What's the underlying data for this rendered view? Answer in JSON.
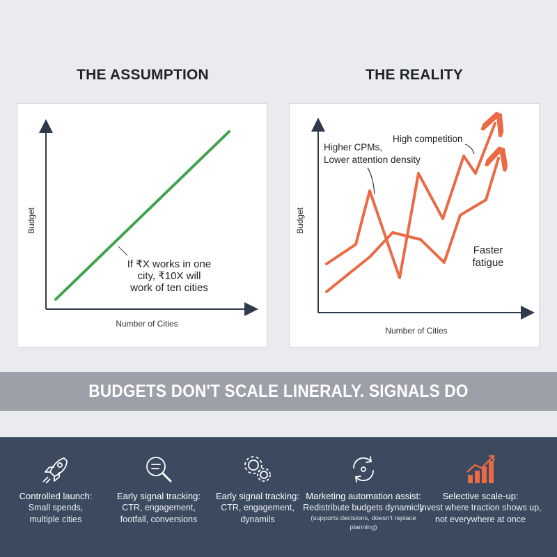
{
  "left_panel": {
    "title": "THE ASSUMPTION",
    "ylabel": "Budget",
    "xlabel": "Number of Cities",
    "note": [
      "If ₹X works in one",
      "city, ₹10X will",
      "work of ten cities"
    ],
    "line_color": "#3fa34d"
  },
  "right_panel": {
    "title": "THE REALITY",
    "ylabel": "Budget",
    "xlabel": "Number of Cities",
    "callouts": {
      "higher_cpms": [
        "Higher CPMs,",
        "Lower attention density"
      ],
      "high_competition": "High competition",
      "faster_fatigue": [
        "Faster",
        "fatigue"
      ]
    },
    "line_color": "#ea6a45"
  },
  "banner": {
    "text": "BUDGETS DON'T SCALE LINERALY. SIGNALS DO"
  },
  "features": [
    {
      "icon": "rocket-icon",
      "title": "Controlled launch:",
      "lines": [
        "Small spends,",
        "multiple cities"
      ]
    },
    {
      "icon": "magnifier-icon",
      "title": "Early signal tracking:",
      "lines": [
        "CTR, engagement,",
        "footfall, conversions"
      ]
    },
    {
      "icon": "gears-icon",
      "title": "Early signal tracking:",
      "lines": [
        "CTR, engagement,",
        "dynamils"
      ]
    },
    {
      "icon": "refresh-icon",
      "title": "Marketing automation assist:",
      "lines": [
        "Redistribute budgets dynamicly"
      ],
      "small": "(supports decisions, doesn't replace planning)"
    },
    {
      "icon": "bar-growth-icon",
      "title": "Selective scale-up:",
      "lines": [
        "Invest where traction shows up,",
        "not everywhere at once"
      ]
    }
  ],
  "colors": {
    "background": "#e9ebef",
    "banner": "#9ca1a9",
    "bottom_bar": "#3b4a5f",
    "accent_orange": "#ea6a45",
    "accent_green": "#3fa34d"
  }
}
